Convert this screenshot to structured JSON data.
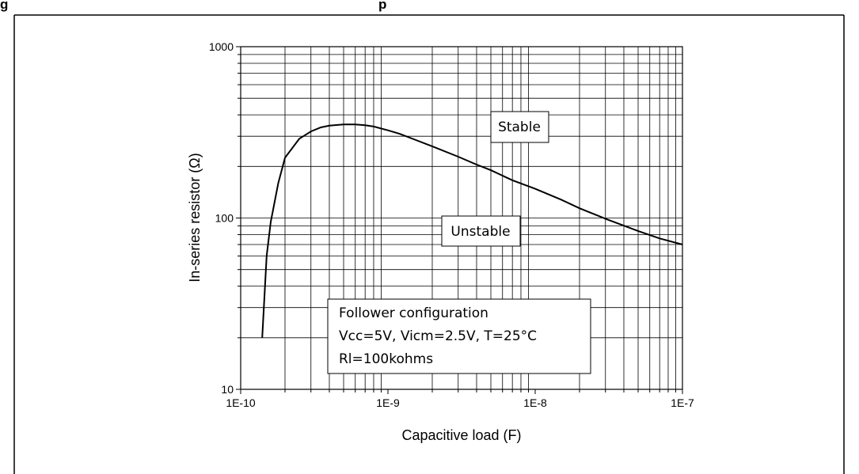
{
  "chart_data": {
    "type": "line",
    "partial_heading": "g",
    "partial_heading_2": "p",
    "xlabel": "Capacitive load (F)",
    "ylabel": "In-series resistor (Ω)",
    "x_scale": "log",
    "y_scale": "log",
    "xlim": [
      1e-10,
      1e-07
    ],
    "ylim": [
      10,
      1000
    ],
    "x_ticks": [
      1e-10,
      1e-09,
      1e-08,
      1e-07
    ],
    "x_tick_labels": [
      "1E-10",
      "1E-9",
      "1E-8",
      "1E-7"
    ],
    "y_ticks": [
      10,
      100,
      1000
    ],
    "y_tick_labels": [
      "10",
      "100",
      "1000"
    ],
    "grid": true,
    "series": [
      {
        "x": [
          1.4e-10,
          1.5e-10,
          1.6e-10,
          1.8e-10,
          2e-10,
          2.5e-10,
          3e-10,
          3.5e-10,
          4e-10,
          5e-10,
          6e-10,
          7e-10,
          8e-10,
          1e-09,
          1.2e-09,
          1.5e-09,
          2e-09,
          3e-09,
          4e-09,
          5e-09,
          7e-09,
          1e-08,
          1.5e-08,
          2e-08,
          3e-08,
          5e-08,
          7e-08,
          1e-07
        ],
        "y": [
          20,
          60,
          95,
          160,
          225,
          290,
          320,
          338,
          346,
          352,
          352,
          348,
          342,
          325,
          310,
          288,
          262,
          228,
          205,
          190,
          166,
          148,
          128,
          114,
          99,
          84,
          76,
          70
        ]
      }
    ],
    "annotations": {
      "stable": "Stable",
      "unstable": "Unstable",
      "info_lines": [
        "Follower configuration",
        "Vcc=5V, Vicm=2.5V, T=25°C",
        "Rl=100kohms"
      ]
    }
  }
}
